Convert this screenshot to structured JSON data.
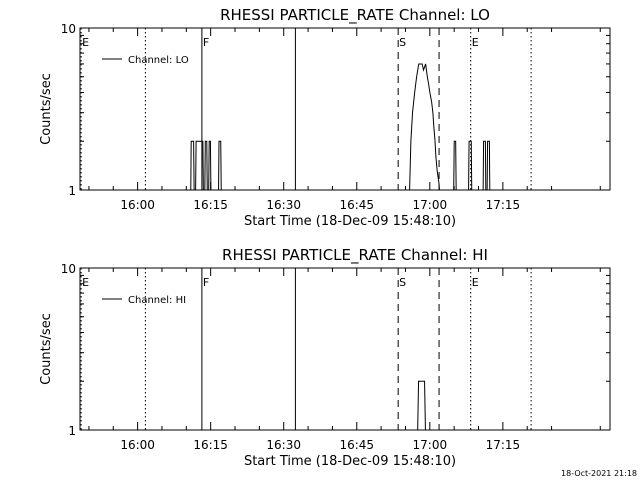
{
  "footer": {
    "timestamp": "18-Oct-2021 21:18"
  },
  "chart_data": [
    {
      "type": "line",
      "title": "RHESSI PARTICLE_RATE Channel: LO",
      "xlabel": "Start Time (18-Dec-09 15:48:10)",
      "ylabel": "Counts/sec",
      "x_unit": "minutes (time of day, 24h)",
      "xlim": [
        948.17,
        1057.0
      ],
      "ylim": [
        1,
        10
      ],
      "yscale": "log",
      "x_ticks": [
        {
          "label": "16:00",
          "value": 960
        },
        {
          "label": "16:15",
          "value": 975
        },
        {
          "label": "16:30",
          "value": 990
        },
        {
          "label": "16:45",
          "value": 1005
        },
        {
          "label": "17:00",
          "value": 1020
        },
        {
          "label": "17:15",
          "value": 1035
        }
      ],
      "y_ticks": [
        {
          "label": "1",
          "value": 1
        },
        {
          "label": "10",
          "value": 10
        }
      ],
      "legend": {
        "placement": "top-left",
        "entries": [
          "Channel: LO"
        ]
      },
      "grid": false,
      "series": [
        {
          "name": "Channel: LO",
          "x": [
            970.6,
            970.92,
            971.0,
            971.5,
            971.6,
            971.91,
            972.01,
            973.4,
            973.5,
            973.8,
            973.9,
            974.2,
            974.3,
            974.6,
            974.7,
            974.95,
            975.05,
            976.62,
            976.71,
            977.07,
            977.17,
            1015.85,
            1016.11,
            1016.45,
            1016.89,
            1017.29,
            1017.73,
            1018.43,
            1018.71,
            1019.14,
            1019.49,
            1019.76,
            1020.01,
            1020.37,
            1020.63,
            1020.81,
            1021.07,
            1021.25,
            1021.53,
            1021.88,
            1021.98,
            1024.91,
            1025.01,
            1025.31,
            1025.41,
            1027.96,
            1028.06,
            1028.51,
            1028.61,
            1030.95,
            1031.04,
            1031.41,
            1031.5,
            1031.77,
            1031.86,
            1032.23,
            1032.32
          ],
          "y": [
            1,
            1,
            2.0,
            2.0,
            1,
            1,
            2.0,
            2.0,
            1,
            1,
            2.0,
            2.0,
            1,
            1,
            2.0,
            2.0,
            1,
            1,
            2.0,
            2.0,
            1,
            1,
            2.0,
            3.0,
            4.0,
            5.0,
            6.0,
            6.0,
            5.5,
            6.0,
            5.0,
            4.5,
            4.0,
            3.5,
            3.0,
            2.5,
            2.0,
            1.6,
            1.3,
            1.1,
            1,
            1,
            2.0,
            2.0,
            1,
            1,
            2.0,
            2.0,
            1,
            1,
            2.0,
            2.0,
            1,
            1,
            2.0,
            2.0,
            1
          ]
        }
      ],
      "vertical_markers": [
        {
          "label": "E",
          "x": 948.4,
          "style": "dotted"
        },
        {
          "label": "",
          "x": 961.6,
          "style": "dotted"
        },
        {
          "label": "F",
          "x": 973.2,
          "style": "solid"
        },
        {
          "label": "",
          "x": 992.4,
          "style": "solid"
        },
        {
          "label": "S",
          "x": 1013.5,
          "style": "dashed"
        },
        {
          "label": "",
          "x": 1021.9,
          "style": "dashed"
        },
        {
          "label": "E",
          "x": 1028.4,
          "style": "dotted"
        },
        {
          "label": "",
          "x": 1040.8,
          "style": "dotted"
        }
      ]
    },
    {
      "type": "line",
      "title": "RHESSI PARTICLE_RATE Channel: HI",
      "xlabel": "Start Time (18-Dec-09 15:48:10)",
      "ylabel": "Counts/sec",
      "x_unit": "minutes (time of day, 24h)",
      "xlim": [
        948.17,
        1057.0
      ],
      "ylim": [
        1,
        10
      ],
      "yscale": "log",
      "x_ticks": [
        {
          "label": "16:00",
          "value": 960
        },
        {
          "label": "16:15",
          "value": 975
        },
        {
          "label": "16:30",
          "value": 990
        },
        {
          "label": "16:45",
          "value": 1005
        },
        {
          "label": "17:00",
          "value": 1020
        },
        {
          "label": "17:15",
          "value": 1035
        }
      ],
      "y_ticks": [
        {
          "label": "1",
          "value": 1
        },
        {
          "label": "10",
          "value": 10
        }
      ],
      "legend": {
        "placement": "top-left",
        "entries": [
          "Channel: HI"
        ]
      },
      "grid": false,
      "series": [
        {
          "name": "Channel: HI",
          "x": [
            1016.98,
            1017.51,
            1017.69,
            1018.92,
            1019.1,
            1019.36
          ],
          "y": [
            1,
            1,
            2.0,
            2.0,
            1,
            1
          ]
        }
      ],
      "vertical_markers": [
        {
          "label": "E",
          "x": 948.4,
          "style": "dotted"
        },
        {
          "label": "",
          "x": 961.6,
          "style": "dotted"
        },
        {
          "label": "F",
          "x": 973.2,
          "style": "solid"
        },
        {
          "label": "",
          "x": 992.4,
          "style": "solid"
        },
        {
          "label": "S",
          "x": 1013.5,
          "style": "dashed"
        },
        {
          "label": "",
          "x": 1021.9,
          "style": "dashed"
        },
        {
          "label": "E",
          "x": 1028.4,
          "style": "dotted"
        },
        {
          "label": "",
          "x": 1040.8,
          "style": "dotted"
        }
      ]
    }
  ]
}
